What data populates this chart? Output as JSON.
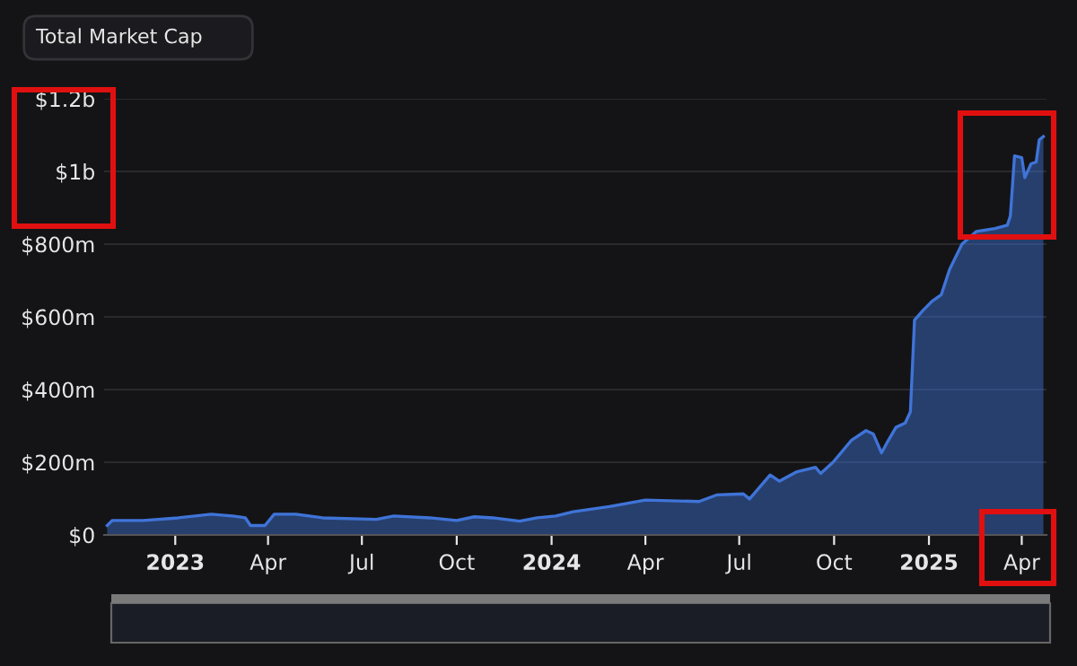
{
  "chart_data": {
    "type": "area",
    "annotations": [
      "Total Market Cap"
    ],
    "x": [
      "2022-10-27",
      "2022-11-01",
      "2022-12-01",
      "2023-01-04",
      "2023-02-05",
      "2023-02-26",
      "2023-03-10",
      "2023-03-15",
      "2023-03-29",
      "2023-04-07",
      "2023-04-28",
      "2023-05-24",
      "2023-07-15",
      "2023-08-01",
      "2023-09-05",
      "2023-10-01",
      "2023-10-18",
      "2023-11-05",
      "2023-12-01",
      "2023-12-18",
      "2024-01-05",
      "2024-01-22",
      "2024-02-26",
      "2024-04-01",
      "2024-05-23",
      "2024-06-09",
      "2024-07-05",
      "2024-07-11",
      "2024-07-31",
      "2024-08-09",
      "2024-08-26",
      "2024-09-13",
      "2024-09-18",
      "2024-09-30",
      "2024-10-18",
      "2024-11-01",
      "2024-11-08",
      "2024-11-16",
      "2024-11-21",
      "2024-11-30",
      "2024-12-09",
      "2024-12-14",
      "2024-12-18",
      "2024-12-26",
      "2025-01-04",
      "2025-01-13",
      "2025-01-21",
      "2025-02-02",
      "2025-02-16",
      "2025-03-06",
      "2025-03-18",
      "2025-03-21",
      "2025-03-25",
      "2025-04-01",
      "2025-04-04",
      "2025-04-10",
      "2025-04-15",
      "2025-04-18",
      "2025-04-22"
    ],
    "series": [
      {
        "color": "#3f74d8",
        "values": [
          26000000,
          40000000,
          40000000,
          47000000,
          57000000,
          52000000,
          47000000,
          26000000,
          26000000,
          57000000,
          57000000,
          47000000,
          43000000,
          52000000,
          47000000,
          40000000,
          50000000,
          47000000,
          38000000,
          47000000,
          52000000,
          64000000,
          78000000,
          96000000,
          92000000,
          110000000,
          113000000,
          99000000,
          165000000,
          148000000,
          174000000,
          186000000,
          169000000,
          200000000,
          261000000,
          287000000,
          278000000,
          226000000,
          252000000,
          296000000,
          308000000,
          339000000,
          591000000,
          617000000,
          643000000,
          661000000,
          730000000,
          800000000,
          835000000,
          843000000,
          852000000,
          878000000,
          1043000000,
          1038000000,
          983000000,
          1021000000,
          1026000000,
          1087000000,
          1096000000
        ]
      }
    ],
    "xlim": [
      "2022-10-24",
      "2025-04-25"
    ],
    "ylim": [
      0,
      1200000000
    ],
    "yticks": [
      {
        "value": 0,
        "label": "$0"
      },
      {
        "value": 200000000,
        "label": "$200m"
      },
      {
        "value": 400000000,
        "label": "$400m"
      },
      {
        "value": 600000000,
        "label": "$600m"
      },
      {
        "value": 800000000,
        "label": "$800m"
      },
      {
        "value": 1000000000,
        "label": "$1b"
      },
      {
        "value": 1200000000,
        "label": "$1.2b"
      }
    ],
    "xticks": [
      {
        "value": "2023-01-01",
        "label": "2023"
      },
      {
        "value": "2023-04-01",
        "label": "Apr"
      },
      {
        "value": "2023-07-01",
        "label": "Jul"
      },
      {
        "value": "2023-10-01",
        "label": "Oct"
      },
      {
        "value": "2024-01-01",
        "label": "2024"
      },
      {
        "value": "2024-04-01",
        "label": "Apr"
      },
      {
        "value": "2024-07-01",
        "label": "Jul"
      },
      {
        "value": "2024-10-01",
        "label": "Oct"
      },
      {
        "value": "2025-01-01",
        "label": "2025"
      },
      {
        "value": "2025-04-01",
        "label": "Apr"
      }
    ],
    "grid": "y",
    "marker": "none",
    "line_style": "solid"
  }
}
